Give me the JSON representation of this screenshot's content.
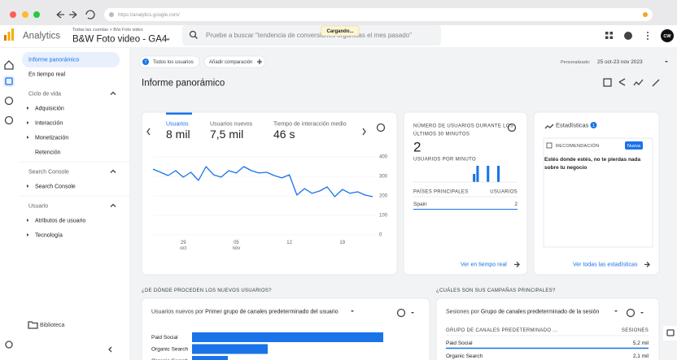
{
  "browser": {
    "url": "https://analytics.google.com/",
    "loading": "Cargando..."
  },
  "header": {
    "product": "Analytics",
    "breadcrumb": "Todas las cuentas > B/w Foto video",
    "property": "B&W Foto video - GA4",
    "search_placeholder": "Pruebe a buscar \"tendencia de conversiones orgánicas el mes pasado\"",
    "avatar": "CW"
  },
  "nav": {
    "top": [
      "Informe panorámico",
      "En tiempo real"
    ],
    "sections": [
      {
        "title": "Ciclo de vida",
        "items": [
          {
            "label": "Adquisición",
            "expandable": true
          },
          {
            "label": "Interacción",
            "expandable": true
          },
          {
            "label": "Monetización",
            "expandable": true
          },
          {
            "label": "Retención",
            "expandable": false
          }
        ]
      },
      {
        "title": "Search Console",
        "items": [
          {
            "label": "Search Console",
            "expandable": true
          }
        ]
      },
      {
        "title": "Usuario",
        "items": [
          {
            "label": "Atributos de usuario",
            "expandable": true
          },
          {
            "label": "Tecnología",
            "expandable": true
          }
        ]
      }
    ],
    "library": "Biblioteca"
  },
  "toolbar": {
    "audience_badge": "T",
    "audience": "Todos los usuarios",
    "compare": "Añadir comparación",
    "date_prefix": "Personalizado:",
    "date_range": "25 oct-23 nov 2023"
  },
  "page_title": "Informe panorámico",
  "overview_card": {
    "tabs": [
      {
        "label": "Usuarios",
        "value": "8 mil"
      },
      {
        "label": "Usuarios nuevos",
        "value": "7,5 mil"
      },
      {
        "label": "Tiempo de interacción medio",
        "value": "46 s"
      }
    ],
    "chart": {
      "type": "line",
      "color": "#1a73e8",
      "categories": [
        null,
        null,
        null,
        null,
        "29",
        null,
        null,
        null,
        null,
        null,
        null,
        "05",
        null,
        null,
        null,
        null,
        null,
        null,
        "12",
        null,
        null,
        null,
        null,
        null,
        null,
        "19",
        null,
        null,
        null,
        null
      ],
      "category_months": [
        null,
        null,
        null,
        null,
        "oct",
        null,
        null,
        null,
        null,
        null,
        null,
        "nov",
        null,
        null,
        null,
        null,
        null,
        null,
        null,
        null,
        null,
        null,
        null,
        null,
        null,
        null,
        null,
        null,
        null,
        null
      ],
      "values": [
        337,
        321,
        304,
        329,
        296,
        321,
        279,
        350,
        308,
        296,
        329,
        317,
        350,
        329,
        317,
        321,
        304,
        292,
        308,
        204,
        237,
        213,
        225,
        246,
        196,
        233,
        213,
        221,
        204,
        196
      ],
      "ylim": [
        0,
        400
      ],
      "yticks": [
        0,
        100,
        200,
        300,
        400
      ]
    }
  },
  "realtime_card": {
    "title": [
      "NÚMERO DE USUARIOS DURANTE LOS",
      "ÚLTIMOS 30 MINUTOS"
    ],
    "users": 2,
    "per_minute_label": "USUARIOS POR MINUTO",
    "per_minute": [
      0,
      0,
      0,
      0,
      0,
      0,
      0,
      0,
      0,
      0,
      0,
      0,
      0,
      0,
      0,
      0,
      0,
      1,
      2,
      0,
      0,
      2,
      0,
      0,
      2,
      0,
      0,
      0,
      0,
      0
    ],
    "color": "#1a73e8",
    "countries_header": "PAÍSES PRINCIPALES",
    "users_header": "USUARIOS",
    "rows": [
      {
        "country": "Spain",
        "users": 2
      }
    ],
    "link": "Ver en tiempo real"
  },
  "insights_card": {
    "title": "Estadísticas",
    "count": 1,
    "tag": "RECOMENDACIÓN",
    "badge": "Nueva",
    "text": [
      "Estés donde estés, no te pierdas nada",
      "sobre tu negocio"
    ],
    "link": "Ver todas las estadísticas"
  },
  "acquisition": {
    "question": "¿DE DÓNDE PROCEDEN LOS NUEVOS USUARIOS?",
    "metric": "Usuarios nuevos",
    "connector": "por",
    "dimension": "Primer grupo de canales predeterminado del usuario",
    "color": "#1a73e8",
    "categories": [
      "Paid Social",
      "Organic Search",
      "Organic Search"
    ],
    "values": [
      4700,
      1860,
      880
    ]
  },
  "campaigns": {
    "question": "¿CUÁLES SON SUS CAMPAÑAS PRINCIPALES?",
    "metric": "Sesiones",
    "connector": "por",
    "dimension": "Grupo de canales predeterminado de la sesión",
    "column_1": "GRUPO DE CANALES PREDETERMINADO ...",
    "column_2": "SESIONES",
    "color": "#1a73e8",
    "categories": [
      "Paid Social",
      "Organic Search"
    ],
    "values": [
      5200,
      2100
    ],
    "value_labels": [
      "5,2 mil",
      "2,1 mil"
    ]
  }
}
